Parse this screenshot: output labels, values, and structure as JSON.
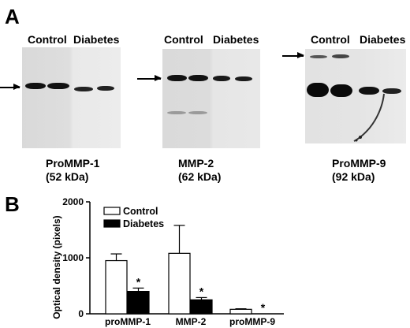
{
  "panel_a": {
    "letter": "A",
    "blots": [
      {
        "lanes": [
          "Control",
          "Diabetes"
        ],
        "protein": "ProMMP-1",
        "size": "(52 kDa)"
      },
      {
        "lanes": [
          "Control",
          "Diabetes"
        ],
        "protein": "MMP-2",
        "size": "(62 kDa)"
      },
      {
        "lanes": [
          "Control",
          "Diabetes"
        ],
        "protein": "ProMMP-9",
        "size": "(92 kDa)"
      }
    ]
  },
  "panel_b": {
    "letter": "B"
  },
  "chart_data": {
    "type": "bar",
    "categories": [
      "proMMP-1",
      "MMP-2",
      "proMMP-9"
    ],
    "series": [
      {
        "name": "Control",
        "values": [
          950,
          1080,
          80
        ],
        "errors": [
          120,
          500,
          10
        ],
        "color": "#ffffff"
      },
      {
        "name": "Diabetes",
        "values": [
          400,
          250,
          0
        ],
        "errors": [
          60,
          40,
          0
        ],
        "color": "#000000"
      }
    ],
    "significance": [
      "*",
      "*",
      "*"
    ],
    "ylabel": "Optical density (pixels)",
    "xlabel": "",
    "yticks": [
      "0",
      "1000",
      "2000"
    ],
    "ylim": [
      0,
      2000
    ],
    "legend_position": "top-left"
  }
}
